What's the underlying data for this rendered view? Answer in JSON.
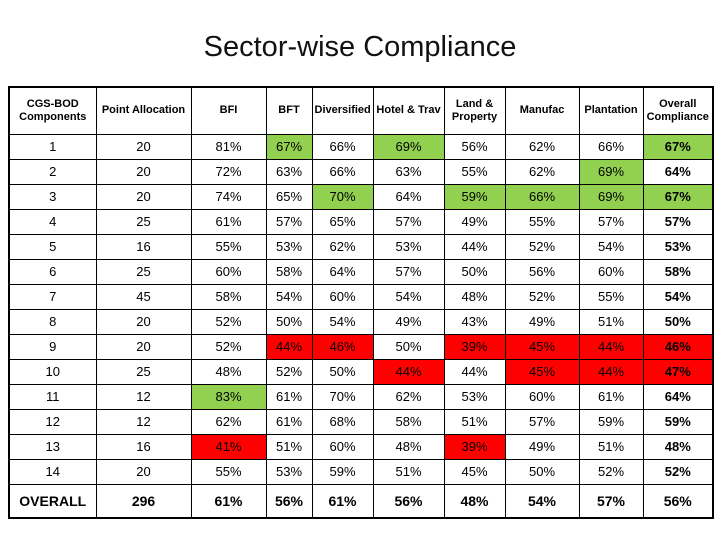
{
  "slide": {
    "title": "Sector-wise Compliance"
  },
  "colors": {
    "highlight_green": "#92D050",
    "highlight_red": "#FF0000",
    "border": "#000000",
    "background": "#FFFFFF",
    "text": "#000000"
  },
  "chart_data": {
    "type": "table",
    "title": "Sector-wise Compliance",
    "columns": [
      "CGS-BOD Components",
      "Point Allocation",
      "BFI",
      "BFT",
      "Diversified",
      "Hotel & Trav",
      "Land & Property",
      "Manufac",
      "Plantation",
      "Overall Compliance"
    ],
    "rows": [
      {
        "cells": [
          "1",
          "20",
          "81%",
          "67%",
          "66%",
          "69%",
          "56%",
          "62%",
          "66%",
          "67%"
        ],
        "highlights": [
          "",
          "",
          "",
          "green",
          "",
          "green",
          "",
          "",
          "",
          "green"
        ]
      },
      {
        "cells": [
          "2",
          "20",
          "72%",
          "63%",
          "66%",
          "63%",
          "55%",
          "62%",
          "69%",
          "64%"
        ],
        "highlights": [
          "",
          "",
          "",
          "",
          "",
          "",
          "",
          "",
          "green",
          ""
        ]
      },
      {
        "cells": [
          "3",
          "20",
          "74%",
          "65%",
          "70%",
          "64%",
          "59%",
          "66%",
          "69%",
          "67%"
        ],
        "highlights": [
          "",
          "",
          "",
          "",
          "green",
          "",
          "green",
          "green",
          "green",
          "green"
        ]
      },
      {
        "cells": [
          "4",
          "25",
          "61%",
          "57%",
          "65%",
          "57%",
          "49%",
          "55%",
          "57%",
          "57%"
        ],
        "highlights": [
          "",
          "",
          "",
          "",
          "",
          "",
          "",
          "",
          "",
          ""
        ]
      },
      {
        "cells": [
          "5",
          "16",
          "55%",
          "53%",
          "62%",
          "53%",
          "44%",
          "52%",
          "54%",
          "53%"
        ],
        "highlights": [
          "",
          "",
          "",
          "",
          "",
          "",
          "",
          "",
          "",
          ""
        ]
      },
      {
        "cells": [
          "6",
          "25",
          "60%",
          "58%",
          "64%",
          "57%",
          "50%",
          "56%",
          "60%",
          "58%"
        ],
        "highlights": [
          "",
          "",
          "",
          "",
          "",
          "",
          "",
          "",
          "",
          ""
        ]
      },
      {
        "cells": [
          "7",
          "45",
          "58%",
          "54%",
          "60%",
          "54%",
          "48%",
          "52%",
          "55%",
          "54%"
        ],
        "highlights": [
          "",
          "",
          "",
          "",
          "",
          "",
          "",
          "",
          "",
          ""
        ]
      },
      {
        "cells": [
          "8",
          "20",
          "52%",
          "50%",
          "54%",
          "49%",
          "43%",
          "49%",
          "51%",
          "50%"
        ],
        "highlights": [
          "",
          "",
          "",
          "",
          "",
          "",
          "",
          "",
          "",
          ""
        ]
      },
      {
        "cells": [
          "9",
          "20",
          "52%",
          "44%",
          "46%",
          "50%",
          "39%",
          "45%",
          "44%",
          "46%"
        ],
        "highlights": [
          "",
          "",
          "",
          "red",
          "red",
          "",
          "red",
          "red",
          "red",
          "red"
        ]
      },
      {
        "cells": [
          "10",
          "25",
          "48%",
          "52%",
          "50%",
          "44%",
          "44%",
          "45%",
          "44%",
          "47%"
        ],
        "highlights": [
          "",
          "",
          "",
          "",
          "",
          "red",
          "",
          "red",
          "red",
          "red"
        ]
      },
      {
        "cells": [
          "11",
          "12",
          "83%",
          "61%",
          "70%",
          "62%",
          "53%",
          "60%",
          "61%",
          "64%"
        ],
        "highlights": [
          "",
          "",
          "green",
          "",
          "",
          "",
          "",
          "",
          "",
          ""
        ]
      },
      {
        "cells": [
          "12",
          "12",
          "62%",
          "61%",
          "68%",
          "58%",
          "51%",
          "57%",
          "59%",
          "59%"
        ],
        "highlights": [
          "",
          "",
          "",
          "",
          "",
          "",
          "",
          "",
          "",
          ""
        ]
      },
      {
        "cells": [
          "13",
          "16",
          "41%",
          "51%",
          "60%",
          "48%",
          "39%",
          "49%",
          "51%",
          "48%"
        ],
        "highlights": [
          "",
          "",
          "red",
          "",
          "",
          "",
          "red",
          "",
          "",
          ""
        ]
      },
      {
        "cells": [
          "14",
          "20",
          "55%",
          "53%",
          "59%",
          "51%",
          "45%",
          "50%",
          "52%",
          "52%"
        ],
        "highlights": [
          "",
          "",
          "",
          "",
          "",
          "",
          "",
          "",
          "",
          ""
        ]
      },
      {
        "cells": [
          "OVERALL",
          "296",
          "61%",
          "56%",
          "61%",
          "56%",
          "48%",
          "54%",
          "57%",
          "56%"
        ],
        "highlights": [
          "",
          "",
          "",
          "",
          "",
          "",
          "",
          "",
          "",
          ""
        ],
        "is_overall": true
      }
    ]
  }
}
